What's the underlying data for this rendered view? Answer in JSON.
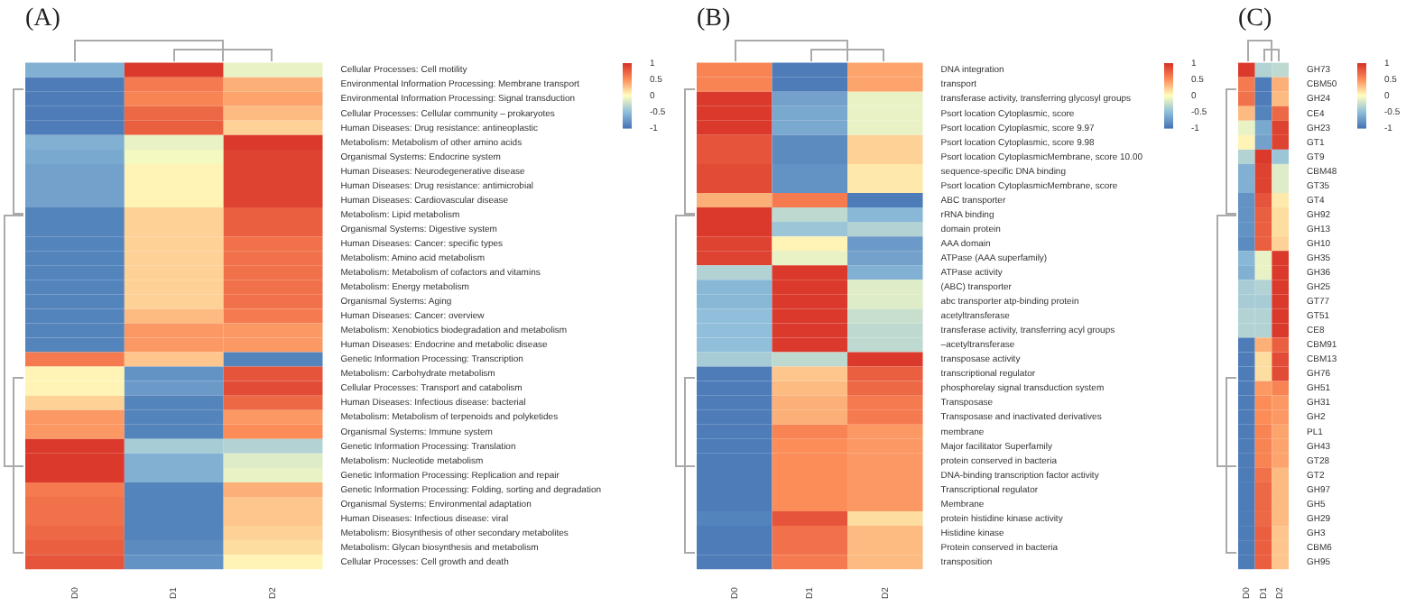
{
  "chart_data": [
    {
      "type": "heatmap",
      "title": "(A)",
      "categories": [
        "D0",
        "D1",
        "D2"
      ],
      "y_categories": [
        "Cellular Processes: Cell motility",
        "Environmental Information Processing: Membrane transport",
        "Environmental Information Processing: Signal transduction",
        "Cellular Processes: Cellular community – prokaryotes",
        "Human Diseases: Drug resistance: antineoplastic",
        "Metabolism: Metabolism of other amino acids",
        "Organismal Systems: Endocrine system",
        "Human Diseases: Neurodegenerative disease",
        "Human Diseases: Drug resistance: antimicrobial",
        "Human Diseases: Cardiovascular disease",
        "Metabolism: Lipid metabolism",
        "Organismal Systems: Digestive system",
        "Human Diseases: Cancer: specific types",
        "Metabolism: Amino acid metabolism",
        "Metabolism: Metabolism of cofactors and vitamins",
        "Metabolism: Energy metabolism",
        "Organismal Systems: Aging",
        "Human Diseases: Cancer: overview",
        "Metabolism: Xenobiotics biodegradation and metabolism",
        "Human Diseases: Endocrine and metabolic disease",
        "Genetic Information Processing: Transcription",
        "Metabolism: Carbohydrate metabolism",
        "Cellular Processes: Transport and catabolism",
        "Human Diseases: Infectious disease: bacterial",
        "Metabolism: Metabolism of terpenoids and polyketides",
        "Organismal Systems: Immune system",
        "Genetic Information Processing: Translation",
        "Metabolism: Nucleotide metabolism",
        "Genetic Information Processing: Replication and repair",
        "Genetic Information Processing: Folding, sorting and degradation",
        "Organismal Systems: Environmental adaptation",
        "Human Diseases: Infectious disease: viral",
        "Metabolism: Biosynthesis of other secondary metabolites",
        "Metabolism: Glycan biosynthesis and metabolism",
        "Cellular Processes: Cell growth and death"
      ],
      "cells": [
        [
          -0.6,
          0.95,
          -0.1
        ],
        [
          -0.95,
          0.6,
          0.35
        ],
        [
          -0.95,
          0.55,
          0.4
        ],
        [
          -0.95,
          0.7,
          0.3
        ],
        [
          -0.95,
          0.75,
          0.2
        ],
        [
          -0.6,
          -0.1,
          0.95
        ],
        [
          -0.65,
          -0.05,
          0.9
        ],
        [
          -0.7,
          0.05,
          0.9
        ],
        [
          -0.7,
          0.05,
          0.9
        ],
        [
          -0.7,
          0.05,
          0.9
        ],
        [
          -0.9,
          0.2,
          0.75
        ],
        [
          -0.9,
          0.2,
          0.75
        ],
        [
          -0.9,
          0.2,
          0.65
        ],
        [
          -0.9,
          0.2,
          0.65
        ],
        [
          -0.9,
          0.2,
          0.65
        ],
        [
          -0.9,
          0.2,
          0.65
        ],
        [
          -0.9,
          0.2,
          0.65
        ],
        [
          -0.9,
          0.3,
          0.6
        ],
        [
          -0.9,
          0.45,
          0.45
        ],
        [
          -0.9,
          0.45,
          0.45
        ],
        [
          0.6,
          0.25,
          -0.9
        ],
        [
          0.05,
          -0.8,
          0.8
        ],
        [
          0.05,
          -0.75,
          0.85
        ],
        [
          0.2,
          -0.9,
          0.7
        ],
        [
          0.45,
          -0.9,
          0.45
        ],
        [
          0.45,
          -0.9,
          0.5
        ],
        [
          0.95,
          -0.4,
          -0.35
        ],
        [
          0.95,
          -0.6,
          -0.15
        ],
        [
          0.95,
          -0.6,
          -0.1
        ],
        [
          0.6,
          -0.9,
          0.35
        ],
        [
          0.65,
          -0.9,
          0.25
        ],
        [
          0.65,
          -0.9,
          0.25
        ],
        [
          0.7,
          -0.9,
          0.2
        ],
        [
          0.75,
          -0.85,
          0.15
        ],
        [
          0.8,
          -0.8,
          0.05
        ]
      ],
      "clim": [
        -1,
        1
      ],
      "cticks": [
        1,
        0.5,
        0,
        -0.5,
        -1
      ]
    },
    {
      "type": "heatmap",
      "title": "(B)",
      "categories": [
        "D0",
        "D1",
        "D2"
      ],
      "y_categories": [
        "DNA integration",
        "transport",
        "transferase activity, transferring glycosyl groups",
        "Psort location Cytoplasmic, score",
        "Psort location Cytoplasmic, score 9.97",
        "Psort location Cytoplasmic, score 9.98",
        "Psort location CytoplasmicMembrane, score 10.00",
        "sequence-specific DNA binding",
        "Psort location CytoplasmicMembrane, score",
        "ABC transporter",
        "rRNA binding",
        "domain protein",
        "AAA domain",
        "ATPase (AAA superfamily)",
        "ATPase activity",
        "(ABC) transporter",
        "abc transporter atp-binding protein",
        "acetyltransferase",
        "transferase activity, transferring acyl groups",
        "–acetyltransferase",
        "transposase activity",
        "transcriptional regulator",
        "phosphorelay signal transduction system",
        "Transposase",
        "Transposase and inactivated derivatives",
        "membrane",
        "Major facilitator Superfamily",
        "protein conserved in bacteria",
        "DNA-binding transcription factor activity",
        "Transcriptional regulator",
        "Membrane",
        "protein histidine kinase activity",
        "Histidine kinase",
        "Protein conserved in bacteria",
        "transposition"
      ],
      "cells": [
        [
          0.55,
          -0.95,
          0.4
        ],
        [
          0.55,
          -0.95,
          0.4
        ],
        [
          0.95,
          -0.7,
          -0.1
        ],
        [
          0.95,
          -0.65,
          -0.1
        ],
        [
          0.95,
          -0.65,
          -0.1
        ],
        [
          0.8,
          -0.85,
          0.2
        ],
        [
          0.8,
          -0.85,
          0.2
        ],
        [
          0.85,
          -0.8,
          0.1
        ],
        [
          0.85,
          -0.8,
          0.1
        ],
        [
          0.35,
          0.6,
          -0.95
        ],
        [
          0.95,
          -0.3,
          -0.55
        ],
        [
          0.95,
          -0.45,
          -0.35
        ],
        [
          0.9,
          0.05,
          -0.75
        ],
        [
          0.9,
          -0.1,
          -0.7
        ],
        [
          -0.35,
          0.95,
          -0.6
        ],
        [
          -0.55,
          0.95,
          -0.15
        ],
        [
          -0.55,
          0.95,
          -0.15
        ],
        [
          -0.5,
          0.95,
          -0.25
        ],
        [
          -0.5,
          0.95,
          -0.3
        ],
        [
          -0.5,
          0.95,
          -0.3
        ],
        [
          -0.4,
          -0.3,
          0.95
        ],
        [
          -0.95,
          0.25,
          0.75
        ],
        [
          -0.95,
          0.3,
          0.7
        ],
        [
          -0.95,
          0.35,
          0.6
        ],
        [
          -0.95,
          0.35,
          0.6
        ],
        [
          -0.95,
          0.55,
          0.45
        ],
        [
          -0.95,
          0.5,
          0.45
        ],
        [
          -0.95,
          0.5,
          0.45
        ],
        [
          -0.95,
          0.5,
          0.45
        ],
        [
          -0.95,
          0.5,
          0.45
        ],
        [
          -0.95,
          0.5,
          0.45
        ],
        [
          -0.9,
          0.8,
          0.15
        ],
        [
          -0.95,
          0.65,
          0.3
        ],
        [
          -0.95,
          0.65,
          0.3
        ],
        [
          -0.95,
          0.6,
          0.3
        ]
      ],
      "clim": [
        -1,
        1
      ],
      "cticks": [
        1,
        0.5,
        0,
        -0.5,
        -1
      ]
    },
    {
      "type": "heatmap",
      "title": "(C)",
      "categories": [
        "D0",
        "D1",
        "D2"
      ],
      "y_categories": [
        "GH73",
        "CBM50",
        "GH24",
        "CE4",
        "GH23",
        "GT1",
        "GT9",
        "CBM48",
        "GT35",
        "GT4",
        "GH92",
        "GH13",
        "GH10",
        "GH35",
        "GH36",
        "GH25",
        "GT77",
        "GT51",
        "CE8",
        "CBM91",
        "CBM13",
        "GH76",
        "GH51",
        "GH31",
        "GH2",
        "PL1",
        "GH43",
        "GT28",
        "GT2",
        "GH97",
        "GH5",
        "GH29",
        "GH3",
        "CBM6",
        "GH95"
      ],
      "cells": [
        [
          0.95,
          -0.35,
          -0.3
        ],
        [
          0.6,
          -0.95,
          0.35
        ],
        [
          0.65,
          -0.95,
          0.3
        ],
        [
          0.3,
          -0.9,
          0.7
        ],
        [
          -0.1,
          -0.65,
          0.9
        ],
        [
          0.05,
          -0.7,
          0.9
        ],
        [
          -0.35,
          0.95,
          -0.45
        ],
        [
          -0.6,
          0.9,
          -0.15
        ],
        [
          -0.6,
          0.9,
          -0.15
        ],
        [
          -0.8,
          0.8,
          0.1
        ],
        [
          -0.8,
          0.75,
          0.15
        ],
        [
          -0.8,
          0.75,
          0.15
        ],
        [
          -0.85,
          0.75,
          0.2
        ],
        [
          -0.55,
          -0.1,
          0.95
        ],
        [
          -0.6,
          -0.1,
          0.95
        ],
        [
          -0.4,
          -0.35,
          0.95
        ],
        [
          -0.4,
          -0.4,
          0.95
        ],
        [
          -0.35,
          -0.35,
          0.95
        ],
        [
          -0.35,
          -0.35,
          0.95
        ],
        [
          -0.95,
          0.35,
          0.75
        ],
        [
          -0.95,
          0.15,
          0.85
        ],
        [
          -0.95,
          0.15,
          0.85
        ],
        [
          -0.95,
          0.45,
          0.55
        ],
        [
          -0.95,
          0.5,
          0.45
        ],
        [
          -0.95,
          0.5,
          0.45
        ],
        [
          -0.95,
          0.55,
          0.4
        ],
        [
          -0.95,
          0.55,
          0.4
        ],
        [
          -0.95,
          0.55,
          0.4
        ],
        [
          -0.95,
          0.65,
          0.3
        ],
        [
          -0.95,
          0.7,
          0.3
        ],
        [
          -0.95,
          0.7,
          0.3
        ],
        [
          -0.95,
          0.7,
          0.3
        ],
        [
          -0.95,
          0.75,
          0.25
        ],
        [
          -0.95,
          0.75,
          0.25
        ],
        [
          -0.95,
          0.75,
          0.25
        ]
      ],
      "clim": [
        -1,
        1
      ],
      "cticks": [
        1,
        0.5,
        0,
        -0.5,
        -1
      ]
    }
  ]
}
